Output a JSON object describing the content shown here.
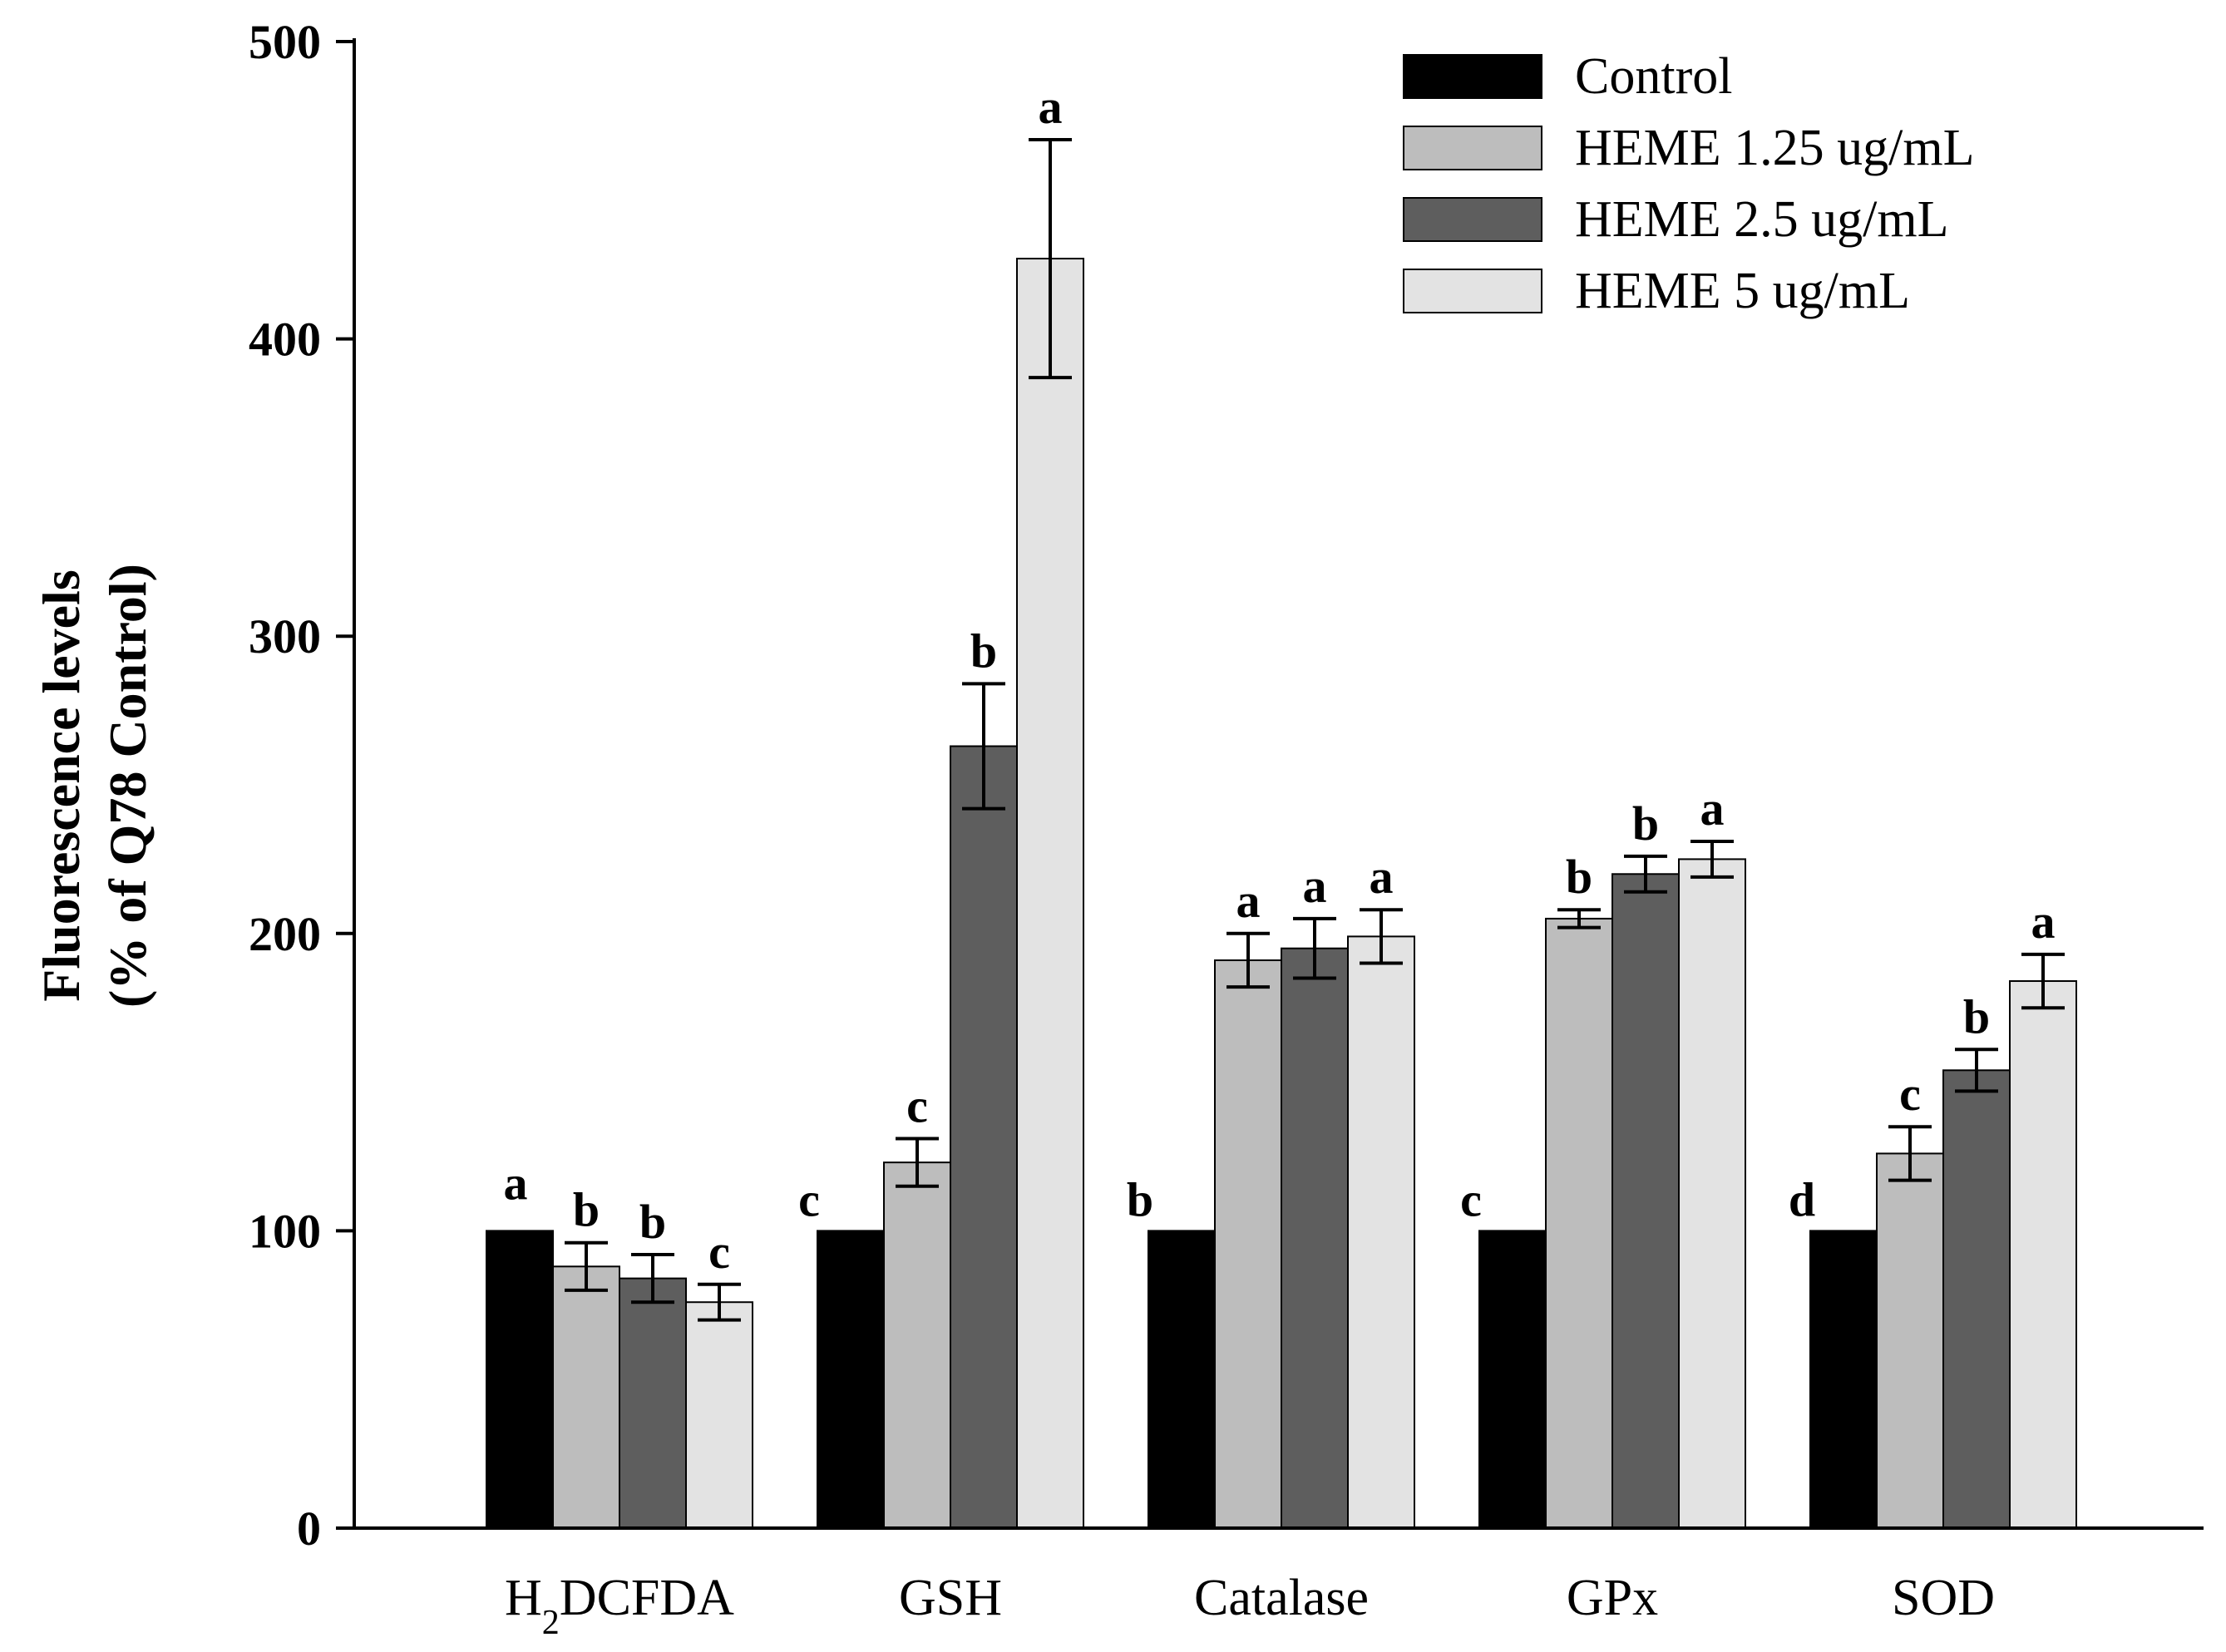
{
  "chart_data": {
    "type": "bar",
    "title": "",
    "xlabel": "",
    "ylabel": [
      "Fluorescence levels",
      "(% of Q78 Control)"
    ],
    "ylim": [
      0,
      500
    ],
    "yticks": [
      0,
      100,
      200,
      300,
      400,
      500
    ],
    "grid": false,
    "legend_position": "top-right",
    "categories": [
      {
        "label": "H",
        "sub": "2",
        "rest": "DCFDA"
      },
      {
        "label": "GSH",
        "sub": "",
        "rest": ""
      },
      {
        "label": "Catalase",
        "sub": "",
        "rest": ""
      },
      {
        "label": "GPx",
        "sub": "",
        "rest": ""
      },
      {
        "label": "SOD",
        "sub": "",
        "rest": ""
      }
    ],
    "series": [
      {
        "name": "Control",
        "color": "#000000",
        "values": [
          100,
          100,
          100,
          100,
          100
        ],
        "errors": [
          0,
          0,
          0,
          0,
          0
        ],
        "significance": [
          "a",
          "c",
          "b",
          "c",
          "d"
        ]
      },
      {
        "name": "HEME 1.25 ug/mL",
        "color": "#bdbdbd",
        "values": [
          88,
          123,
          191,
          205,
          126
        ],
        "errors": [
          8,
          8,
          9,
          3,
          9
        ],
        "significance": [
          "b",
          "c",
          "a",
          "b",
          "c"
        ]
      },
      {
        "name": "HEME 2.5 ug/mL",
        "color": "#5e5e5e",
        "values": [
          84,
          263,
          195,
          220,
          154
        ],
        "errors": [
          8,
          21,
          10,
          6,
          7
        ],
        "significance": [
          "b",
          "b",
          "a",
          "b",
          "b"
        ]
      },
      {
        "name": "HEME 5 ug/mL",
        "color": "#e3e3e3",
        "values": [
          76,
          427,
          199,
          225,
          184
        ],
        "errors": [
          6,
          40,
          9,
          6,
          9
        ],
        "significance": [
          "c",
          "a",
          "a",
          "a",
          "a"
        ]
      }
    ]
  }
}
